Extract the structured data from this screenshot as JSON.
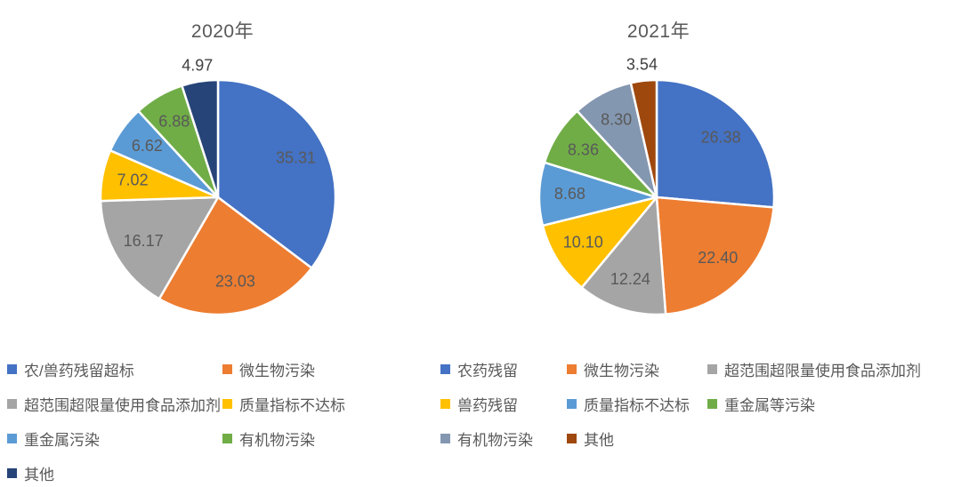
{
  "chart_data": [
    {
      "type": "pie",
      "title": "2020年",
      "categories": [
        "农/兽药残留超标",
        "微生物污染",
        "超范围超限量使用食品添加剂",
        "质量指标不达标",
        "重金属污染",
        "有机物污染",
        "其他"
      ],
      "values": [
        35.31,
        23.03,
        16.17,
        7.02,
        6.62,
        6.88,
        4.97
      ],
      "colors": [
        "#4472C4",
        "#ED7D31",
        "#A5A5A5",
        "#FFC000",
        "#5B9BD5",
        "#70AD47",
        "#264478"
      ],
      "data_labels_shown": [
        "35.31",
        "23.03",
        "16.17",
        "7.02",
        "6.62",
        "6.88",
        "4.97"
      ],
      "outside_label_index": 6,
      "start_angle_deg": 0,
      "direction": "clockwise",
      "legend_position": "bottom",
      "legend_columns": 2,
      "inside_label_color": "#595959",
      "outside_label_color": "#3f3f3f",
      "slice_border_color": "#ffffff"
    },
    {
      "type": "pie",
      "title": "2021年",
      "categories": [
        "农药残留",
        "微生物污染",
        "超范围超限量使用食品添加剂",
        "兽药残留",
        "质量指标不达标",
        "重金属等污染",
        "有机物污染",
        "其他"
      ],
      "values": [
        26.38,
        22.4,
        12.24,
        10.1,
        8.68,
        8.36,
        8.3,
        3.54
      ],
      "colors": [
        "#4472C4",
        "#ED7D31",
        "#A5A5A5",
        "#FFC000",
        "#5B9BD5",
        "#70AD47",
        "#8497B0",
        "#9E480E"
      ],
      "data_labels_shown": [
        "26.38",
        "22.40",
        "12.24",
        "10.10",
        "8.68",
        "8.36",
        "8.30",
        "3.54"
      ],
      "outside_label_index": 7,
      "start_angle_deg": 0,
      "direction": "clockwise",
      "legend_position": "bottom",
      "legend_columns": 3,
      "inside_label_color": "#595959",
      "outside_label_color": "#3f3f3f",
      "slice_border_color": "#ffffff"
    }
  ]
}
